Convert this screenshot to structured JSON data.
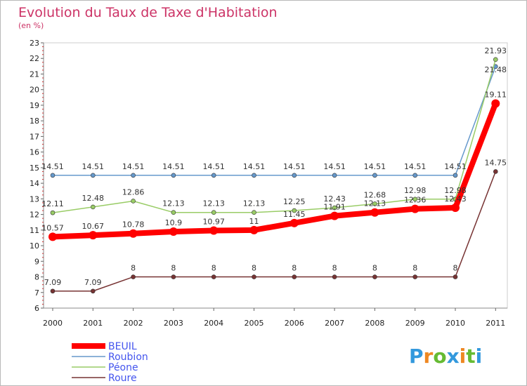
{
  "chart_data": {
    "type": "line",
    "title": "Evolution du Taux de Taxe d'Habitation",
    "subtitle": "(en %)",
    "categories": [
      "2000",
      "2001",
      "2002",
      "2003",
      "2004",
      "2005",
      "2006",
      "2007",
      "2008",
      "2009",
      "2010",
      "2011"
    ],
    "ylim": [
      6,
      23
    ],
    "yticks": [
      "6",
      "7",
      "8",
      "9",
      "10",
      "11",
      "12",
      "13",
      "14",
      "15",
      "16",
      "17",
      "18",
      "19",
      "20",
      "21",
      "22",
      "23"
    ],
    "series": [
      {
        "name": "BEUIL",
        "color": "#ff0000",
        "values": [
          10.57,
          10.67,
          10.78,
          10.9,
          10.97,
          11,
          11.45,
          11.91,
          12.13,
          12.36,
          12.43,
          19.11
        ],
        "labels": [
          "10.57",
          "10.67",
          "10.78",
          "10.9",
          "10.97",
          "11",
          "11.45",
          "11.91",
          "12.13",
          "12.36",
          "12.43",
          "19.11"
        ]
      },
      {
        "name": "Roubion",
        "color": "#6699cc",
        "values": [
          14.51,
          14.51,
          14.51,
          14.51,
          14.51,
          14.51,
          14.51,
          14.51,
          14.51,
          14.51,
          14.51,
          21.48
        ],
        "labels": [
          "14.51",
          "14.51",
          "14.51",
          "14.51",
          "14.51",
          "14.51",
          "14.51",
          "14.51",
          "14.51",
          "14.51",
          "14.51",
          "21.48"
        ]
      },
      {
        "name": "Péone",
        "color": "#99cc66",
        "values": [
          12.11,
          12.48,
          12.86,
          12.13,
          12.13,
          12.13,
          12.25,
          12.43,
          12.68,
          12.98,
          12.98,
          21.93
        ],
        "labels": [
          "12.11",
          "12.48",
          "12.86",
          "12.13",
          "12.13",
          "12.13",
          "12.25",
          "12.43",
          "12.68",
          "12.98",
          "12.98",
          "21.93"
        ]
      },
      {
        "name": "Roure",
        "color": "#773333",
        "values": [
          7.09,
          7.09,
          8,
          8,
          8,
          8,
          8,
          8,
          8,
          8,
          8,
          14.75
        ],
        "labels": [
          "7.09",
          "7.09",
          "8",
          "8",
          "8",
          "8",
          "8",
          "8",
          "8",
          "8",
          "8",
          "14.75"
        ]
      }
    ]
  },
  "logo": {
    "letters": [
      "P",
      "r",
      "o",
      "x",
      "i",
      "t",
      "i"
    ],
    "colors": [
      "#3399dd",
      "#ee8822",
      "#66bb33",
      "#3399dd",
      "#ee8822",
      "#66bb33",
      "#3399dd"
    ]
  }
}
